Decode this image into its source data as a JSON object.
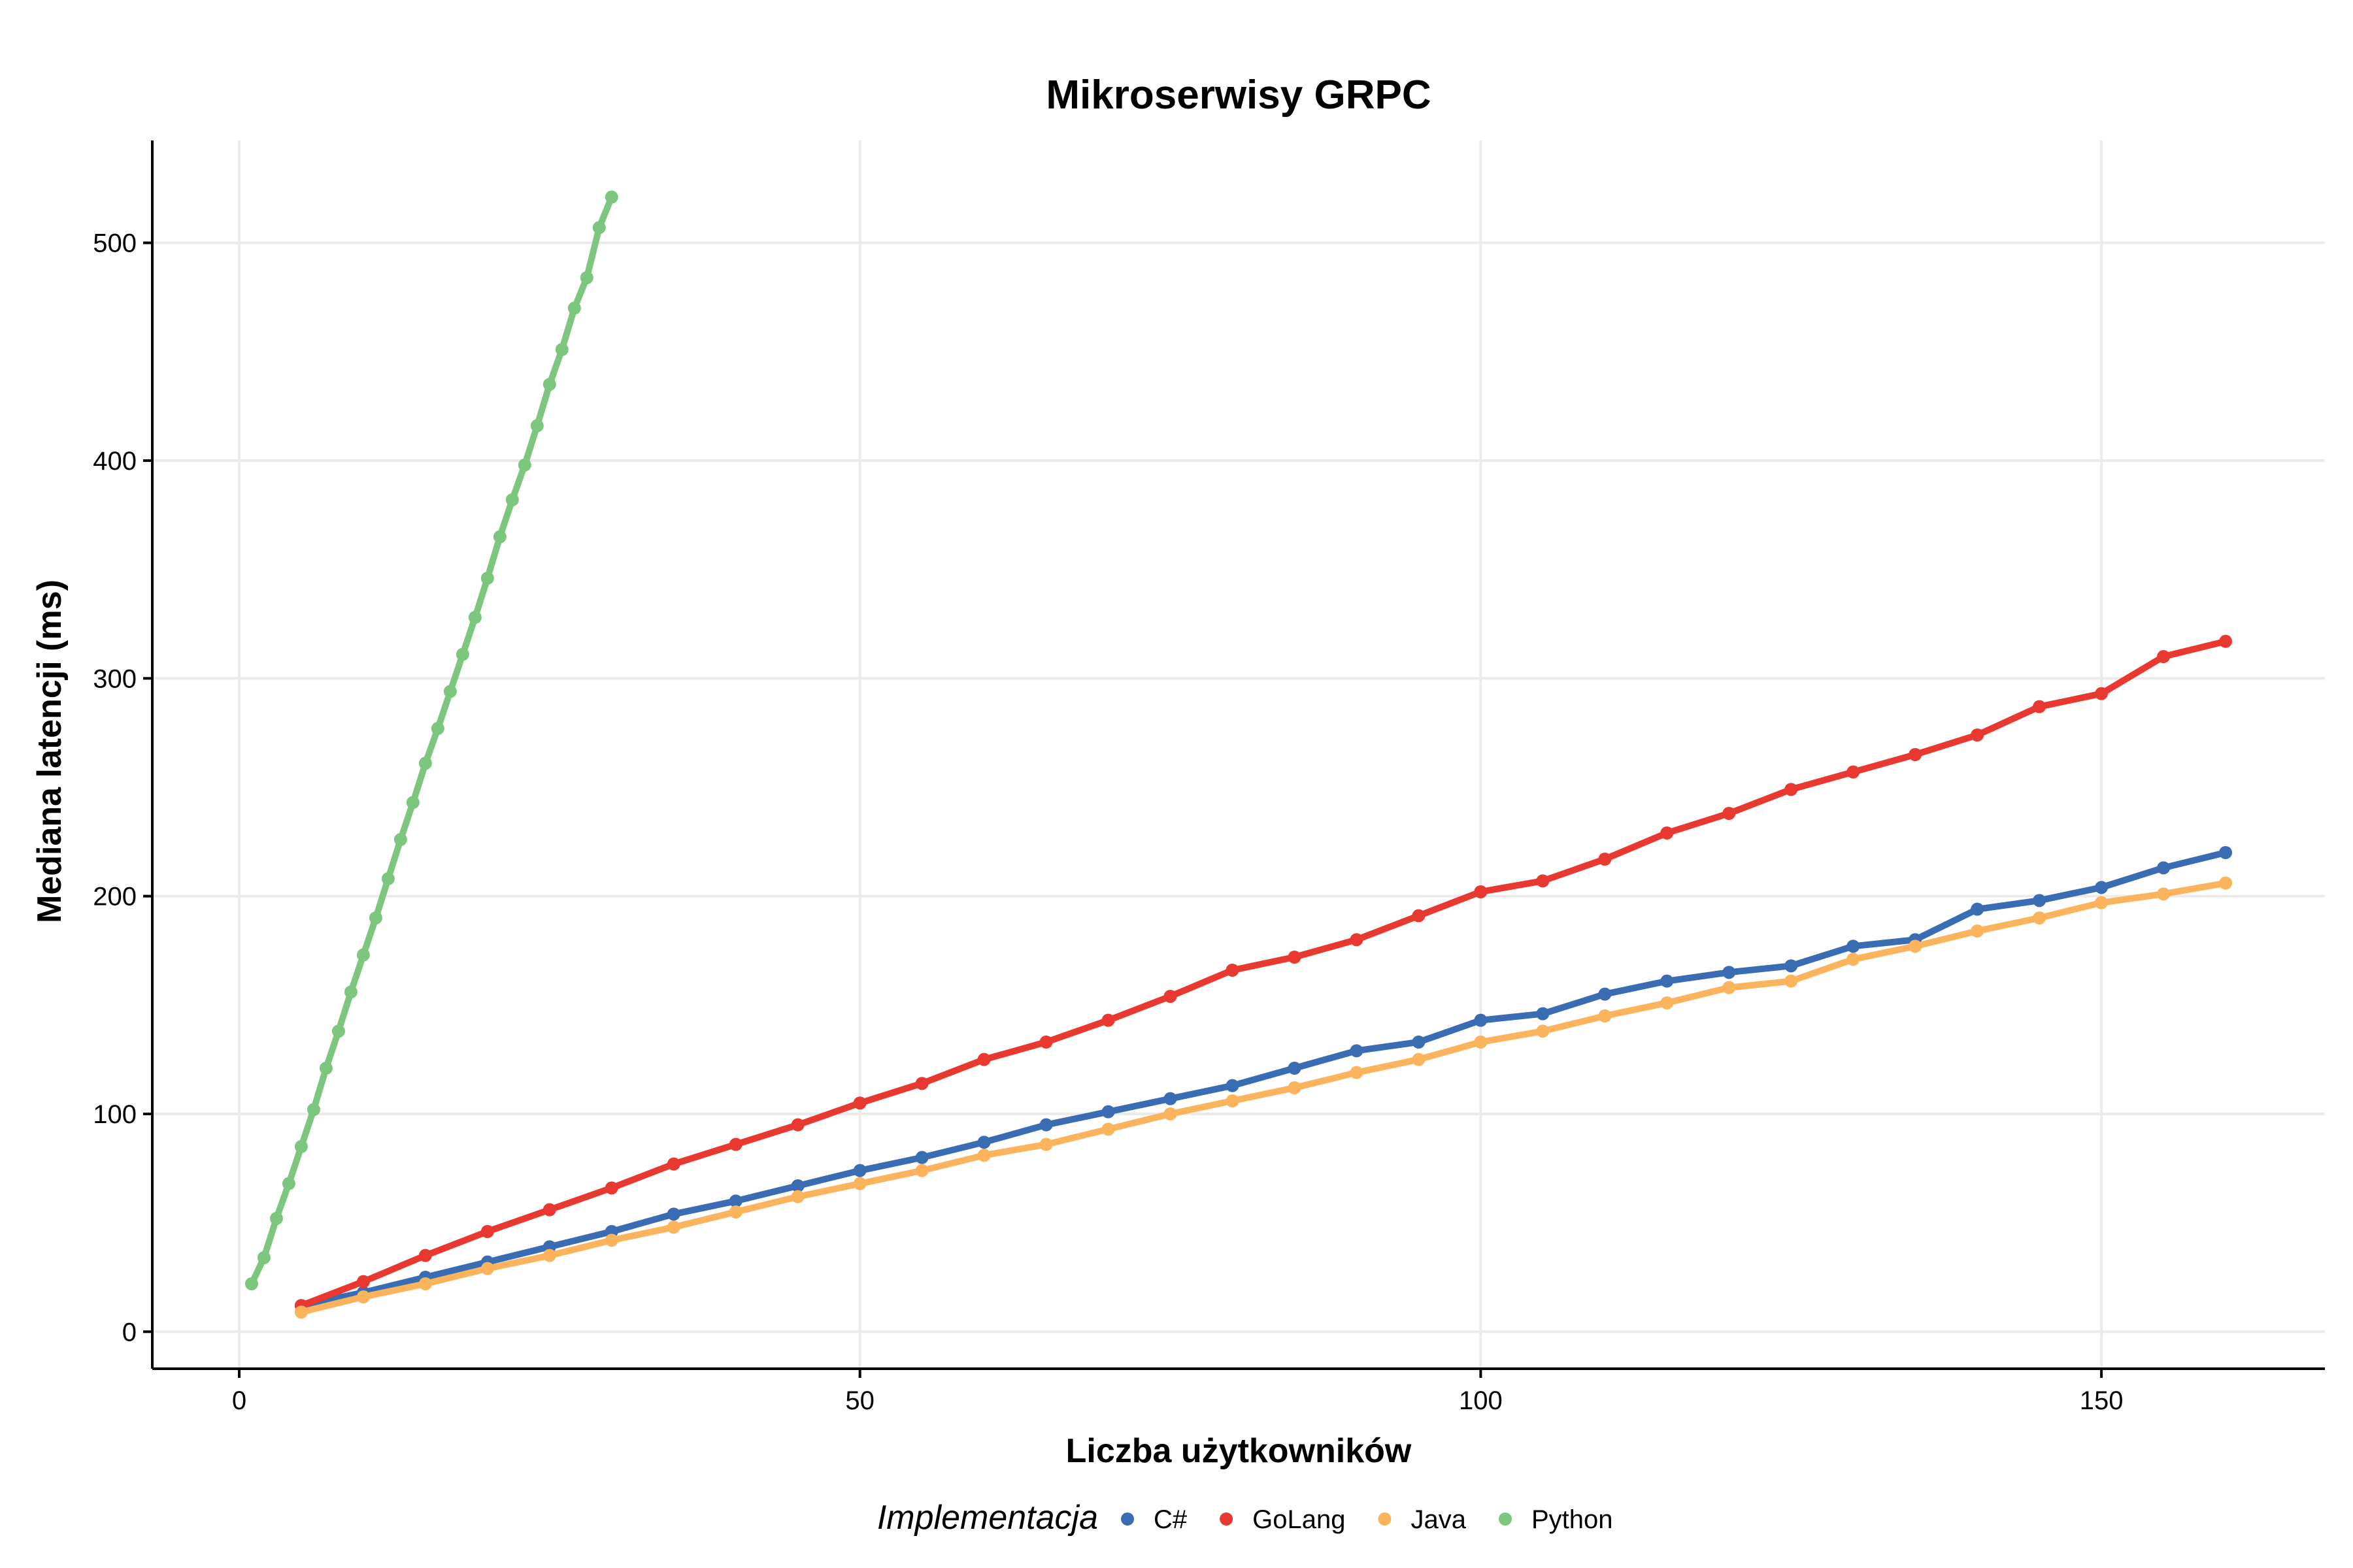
{
  "chart_data": {
    "type": "line",
    "title": "Mikroserwisy GRPC",
    "xlabel": "Liczba użytkowników",
    "ylabel": "Mediana latencji (ms)",
    "xlim": [
      -7,
      168
    ],
    "ylim": [
      -17,
      547
    ],
    "xticks": [
      0,
      50,
      100,
      150
    ],
    "yticks": [
      0,
      100,
      200,
      300,
      400,
      500
    ],
    "grid": true,
    "legend": {
      "title": "Implementacja",
      "position": "bottom"
    },
    "series": [
      {
        "name": "C#",
        "color": "#3a6cb4",
        "x": [
          5,
          10,
          15,
          20,
          25,
          30,
          35,
          40,
          45,
          50,
          55,
          60,
          65,
          70,
          75,
          80,
          85,
          90,
          95,
          100,
          105,
          110,
          115,
          120,
          125,
          130,
          135,
          140,
          145,
          150,
          155,
          160
        ],
        "y": [
          12,
          18,
          25,
          32,
          39,
          46,
          54,
          60,
          67,
          74,
          80,
          87,
          95,
          101,
          107,
          113,
          121,
          129,
          133,
          143,
          146,
          155,
          161,
          165,
          168,
          177,
          180,
          194,
          198,
          204,
          213,
          220
        ]
      },
      {
        "name": "GoLang",
        "color": "#e8382f",
        "x": [
          5,
          10,
          15,
          20,
          25,
          30,
          35,
          40,
          45,
          50,
          55,
          60,
          65,
          70,
          75,
          80,
          85,
          90,
          95,
          100,
          105,
          110,
          115,
          120,
          125,
          130,
          135,
          140,
          145,
          150,
          155,
          160
        ],
        "y": [
          12,
          23,
          35,
          46,
          56,
          66,
          77,
          86,
          95,
          105,
          114,
          125,
          133,
          143,
          154,
          166,
          172,
          180,
          191,
          202,
          207,
          217,
          229,
          238,
          249,
          257,
          265,
          274,
          287,
          293,
          310,
          317
        ]
      },
      {
        "name": "Java",
        "color": "#fbb45c",
        "x": [
          5,
          10,
          15,
          20,
          25,
          30,
          35,
          40,
          45,
          50,
          55,
          60,
          65,
          70,
          75,
          80,
          85,
          90,
          95,
          100,
          105,
          110,
          115,
          120,
          125,
          130,
          135,
          140,
          145,
          150,
          155,
          160
        ],
        "y": [
          9,
          16,
          22,
          29,
          35,
          42,
          48,
          55,
          62,
          68,
          74,
          81,
          86,
          93,
          100,
          106,
          112,
          119,
          125,
          133,
          138,
          145,
          151,
          158,
          161,
          171,
          177,
          184,
          190,
          197,
          201,
          206
        ]
      },
      {
        "name": "Python",
        "color": "#7dc67d",
        "x": [
          1,
          2,
          3,
          4,
          5,
          6,
          7,
          8,
          9,
          10,
          11,
          12,
          13,
          14,
          15,
          16,
          17,
          18,
          19,
          20,
          21,
          22,
          23,
          24,
          25,
          26,
          27,
          28,
          29,
          30
        ],
        "y": [
          22,
          34,
          52,
          68,
          85,
          102,
          121,
          138,
          156,
          173,
          190,
          208,
          226,
          243,
          261,
          277,
          294,
          311,
          328,
          346,
          365,
          382,
          398,
          416,
          435,
          451,
          470,
          484,
          507,
          521
        ]
      }
    ]
  }
}
